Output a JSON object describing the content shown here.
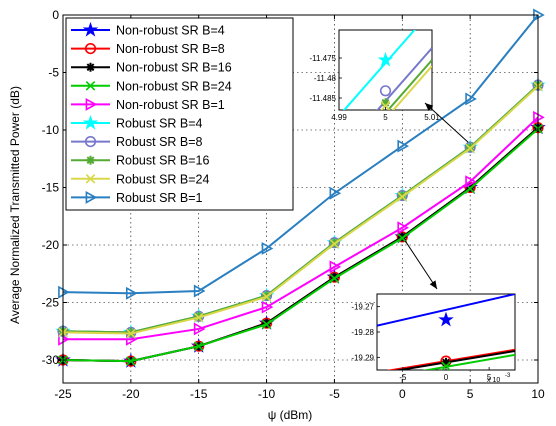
{
  "chart_data": {
    "type": "line",
    "title": "",
    "xlabel": "ψ (dBm)",
    "ylabel": "Average Normalized Transmitted Power (dB)",
    "x": [
      -25,
      -20,
      -15,
      -10,
      -5,
      0,
      5,
      10
    ],
    "xlim": [
      -25,
      10
    ],
    "ylim": [
      -32,
      0
    ],
    "xticks": [
      "-25",
      "-20",
      "-15",
      "-10",
      "-5",
      "0",
      "5",
      "10"
    ],
    "yticks": [
      "0",
      "-5",
      "-10",
      "-15",
      "-20",
      "-25",
      "-30"
    ],
    "grid": true,
    "legend_position": "top-left",
    "series": [
      {
        "name": "Non-robust SR B=4",
        "color": "#0000ff",
        "marker": "star",
        "values": [
          -30.0,
          -30.1,
          -28.8,
          -26.8,
          -22.8,
          -19.3,
          -15.0,
          -9.8
        ]
      },
      {
        "name": "Non-robust SR B=8",
        "color": "#ff0000",
        "marker": "circle",
        "values": [
          -30.0,
          -30.1,
          -28.8,
          -26.8,
          -22.8,
          -19.3,
          -15.0,
          -9.8
        ]
      },
      {
        "name": "Non-robust SR B=16",
        "color": "#000000",
        "marker": "asterisk",
        "values": [
          -30.0,
          -30.1,
          -28.8,
          -26.8,
          -22.8,
          -19.3,
          -15.0,
          -9.8
        ]
      },
      {
        "name": "Non-robust SR B=24",
        "color": "#00cc00",
        "marker": "x",
        "values": [
          -30.0,
          -30.1,
          -28.8,
          -26.9,
          -22.9,
          -19.4,
          -15.1,
          -9.9
        ]
      },
      {
        "name": "Non-robust SR B=1",
        "color": "#ff00ff",
        "marker": "triangle-right",
        "values": [
          -28.2,
          -28.2,
          -27.3,
          -25.4,
          -21.9,
          -18.5,
          -14.5,
          -8.9
        ]
      },
      {
        "name": "Robust SR B=4",
        "color": "#00ffff",
        "marker": "star",
        "values": [
          -27.5,
          -27.6,
          -26.2,
          -24.4,
          -19.8,
          -15.7,
          -11.5,
          -6.1
        ]
      },
      {
        "name": "Robust SR B=8",
        "color": "#7777cc",
        "marker": "circle",
        "values": [
          -27.5,
          -27.6,
          -26.2,
          -24.4,
          -19.8,
          -15.7,
          -11.5,
          -6.1
        ]
      },
      {
        "name": "Robust SR B=16",
        "color": "#55aa33",
        "marker": "asterisk",
        "values": [
          -27.5,
          -27.6,
          -26.2,
          -24.4,
          -19.8,
          -15.7,
          -11.5,
          -6.1
        ]
      },
      {
        "name": "Robust SR B=24",
        "color": "#d8d84a",
        "marker": "x",
        "values": [
          -27.6,
          -27.7,
          -26.3,
          -24.5,
          -19.9,
          -15.8,
          -11.6,
          -6.2
        ]
      },
      {
        "name": "Robust SR B=1",
        "color": "#2a7fc0",
        "marker": "triangle-right",
        "values": [
          -24.1,
          -24.2,
          -24.0,
          -20.3,
          -15.5,
          -11.4,
          -7.3,
          0.0
        ]
      }
    ],
    "insets": [
      {
        "position": "top-right",
        "xlim": [
          4.99,
          5.01
        ],
        "ylim": [
          -11.488,
          -11.468
        ],
        "xticks": [
          "4.99",
          "5",
          "5.01"
        ],
        "yticks": [
          "-11.475",
          "-11.48",
          "-11.485"
        ],
        "series": [
          {
            "color": "#00ffff",
            "marker": "star",
            "x": [
              4.99,
              5.01
            ],
            "values": [
              -11.4895,
              -11.463
            ],
            "marker_at": [
              5,
              -11.4755
            ]
          },
          {
            "color": "#7777cc",
            "marker": "circle",
            "x": [
              4.99,
              5.01
            ],
            "values": [
              -11.499,
              -11.4725
            ],
            "marker_at": [
              5,
              -11.4832
            ]
          },
          {
            "color": "#55aa33",
            "marker": "asterisk",
            "x": [
              4.99,
              5.01
            ],
            "values": [
              -11.502,
              -11.4755
            ],
            "marker_at": [
              5,
              -11.4862
            ]
          },
          {
            "color": "#d8d84a",
            "marker": "x",
            "x": [
              4.99,
              5.01
            ],
            "values": [
              -11.5035,
              -11.477
            ],
            "marker_at": [
              5,
              -11.487
            ]
          }
        ]
      },
      {
        "position": "bottom-right",
        "xlim": [
          -8,
          8
        ],
        "ylim": [
          -19.295,
          -19.265
        ],
        "xticks": [
          "-5",
          "0",
          "5"
        ],
        "yticks": [
          "-19.27",
          "-19.28",
          "-19.29"
        ],
        "x_multiplier": "x 10",
        "x_exponent": "-3",
        "series": [
          {
            "color": "#0000ff",
            "marker": "star",
            "x": [
              -8,
              8
            ],
            "values": [
              -19.2775,
              -19.265
            ],
            "marker_at": [
              0,
              -19.2752
            ]
          },
          {
            "color": "#ff0000",
            "marker": "circle",
            "x": [
              -8,
              8
            ],
            "values": [
              -19.296,
              -19.287
            ],
            "marker_at": [
              0,
              -19.2915
            ]
          },
          {
            "color": "#000000",
            "marker": "asterisk",
            "x": [
              -8,
              8
            ],
            "values": [
              -19.2965,
              -19.2875
            ],
            "marker_at": [
              0,
              -19.292
            ]
          },
          {
            "color": "#00cc00",
            "marker": "x",
            "x": [
              -8,
              8
            ],
            "values": [
              -19.2985,
              -19.289
            ],
            "marker_at": [
              0,
              -19.2935
            ]
          }
        ]
      }
    ]
  }
}
